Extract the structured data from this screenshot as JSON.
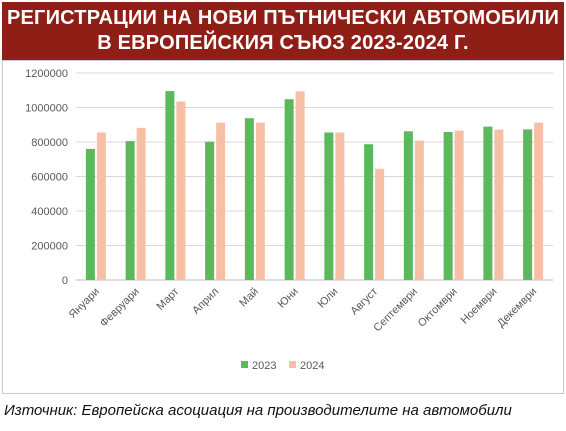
{
  "title_lines": [
    "РЕГИСТРАЦИИ НА НОВИ ПЪТНИЧЕСКИ АВТОМОБИЛИ",
    "В ЕВРОПЕЙСКИЯ СЪЮЗ 2023-2024 Г."
  ],
  "source": "Източник: Европейска асоциация на производителите на автомобили",
  "chart_data": {
    "type": "bar",
    "categories": [
      "Януари",
      "Февруари",
      "Март",
      "Април",
      "Май",
      "Юни",
      "Юли",
      "Август",
      "Септември",
      "Октомври",
      "Ноември",
      "Декември"
    ],
    "series": [
      {
        "name": "2023",
        "color": "#5cb85c",
        "values": [
          760000,
          805000,
          1095000,
          802000,
          938000,
          1048000,
          855000,
          787000,
          862000,
          858000,
          889000,
          873000
        ]
      },
      {
        "name": "2024",
        "color": "#f7c0a6",
        "values": [
          855000,
          882000,
          1035000,
          912000,
          912000,
          1093000,
          855000,
          645000,
          808000,
          866000,
          872000,
          912000
        ]
      }
    ],
    "ylim": [
      0,
      1200000
    ],
    "yticks": [
      0,
      200000,
      400000,
      600000,
      800000,
      1000000,
      1200000
    ],
    "grid": true,
    "legend_position": "bottom"
  }
}
